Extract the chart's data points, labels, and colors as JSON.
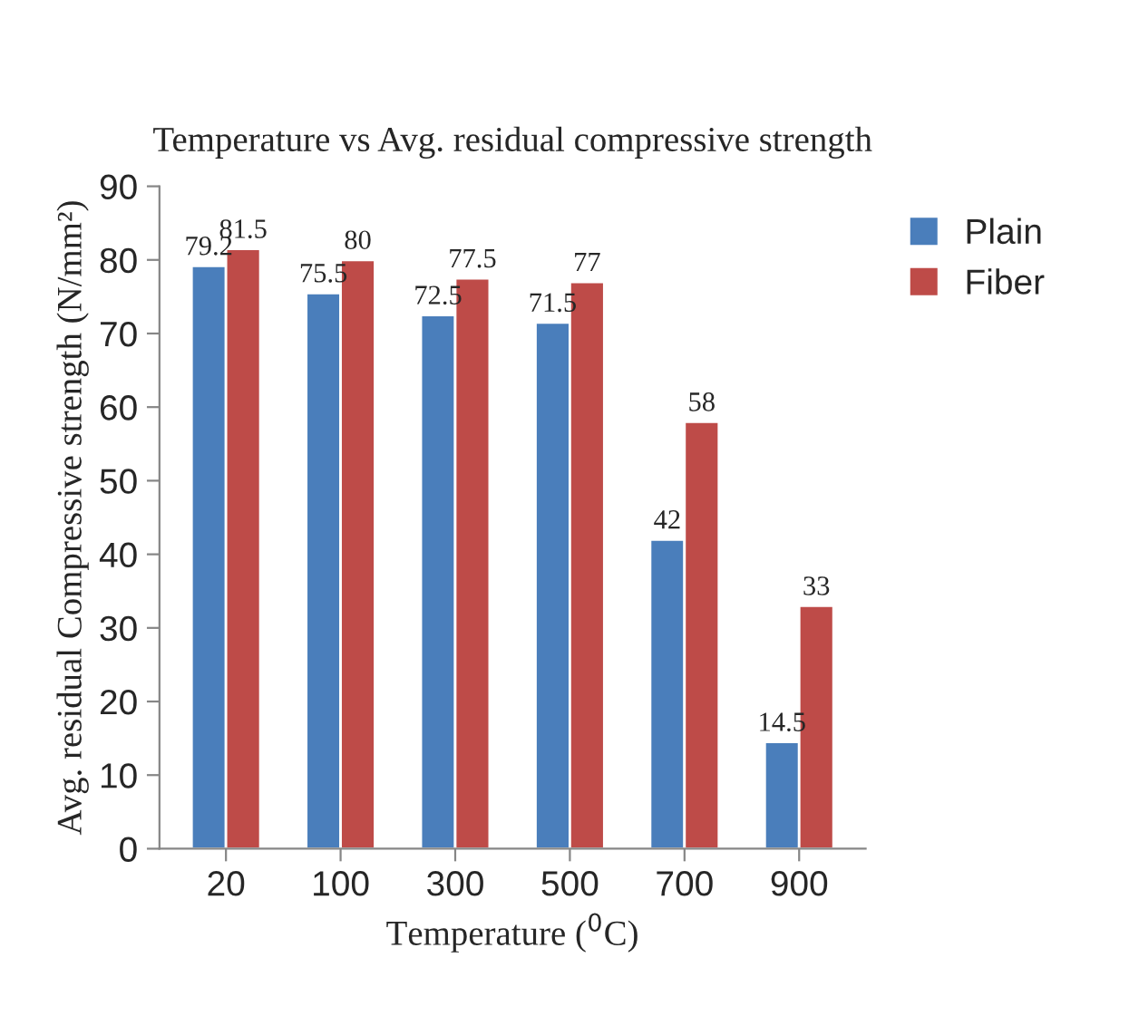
{
  "chart_data": {
    "type": "bar",
    "title": "Temperature vs Avg. residual compressive strength",
    "xlabel": "Temperature ($^{0}$C)",
    "ylabel": "Avg. residual Compressive strength (N/mm²)",
    "categories": [
      "20",
      "100",
      "300",
      "500",
      "700",
      "900"
    ],
    "series": [
      {
        "name": "Plain",
        "color": "#4a7ebb",
        "values": [
          79.2,
          75.5,
          72.5,
          71.5,
          42,
          14.5
        ]
      },
      {
        "name": "Fiber",
        "color": "#be4b48",
        "values": [
          81.5,
          80,
          77.5,
          77,
          58,
          33
        ]
      }
    ],
    "ylim": [
      0,
      90
    ],
    "yticks": [
      0,
      10,
      20,
      30,
      40,
      50,
      60,
      70,
      80,
      90
    ],
    "grid": false,
    "legend": "right",
    "data_labels": true
  }
}
